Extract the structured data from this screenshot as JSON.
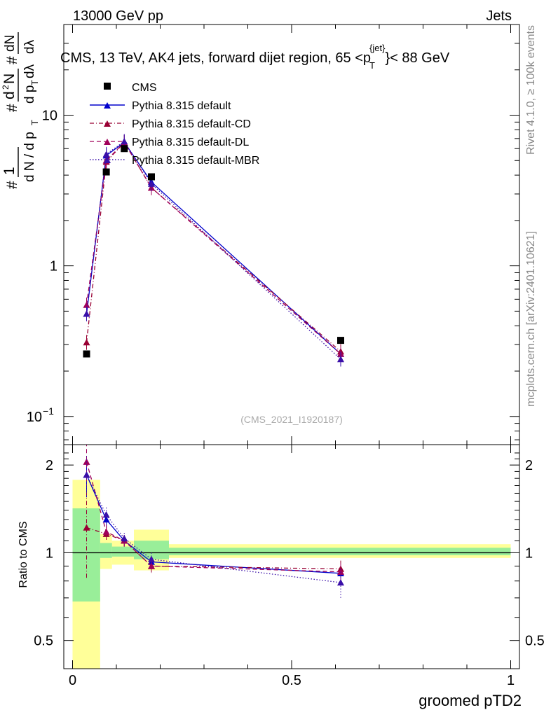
{
  "header": {
    "left": "13000 GeV pp",
    "right": "Jets"
  },
  "side_labels": {
    "rivet": "Rivet 4.1.0, ≥ 100k events",
    "mcplots": "mcplots.cern.ch [arXiv:2401.10621]"
  },
  "chart_data": {
    "type": "line",
    "title": "CMS, 13 TeV, AK4 jets, forward dijet region, 65 <p_T^{jet}< 88 GeV",
    "title_parts": {
      "main": "CMS, 13 TeV, AK4 jets, forward dijet region, 65 <p",
      "sub": "T",
      "sup": "{jet}",
      "tail": "}< 88 GeV"
    },
    "watermark": "(CMS_2021_I1920187)",
    "xlabel": "groomed pTD2",
    "ylabel_main": "1/dN/dp_T dN/dp_T dλ",
    "ylabel_ratio": "Ratio to CMS",
    "xlim": [
      -0.02,
      1.02
    ],
    "main_ylim": [
      0.065,
      40
    ],
    "ratio_ylim": [
      0.4,
      2.35
    ],
    "x_ticks": [
      "0",
      "0.5",
      "1"
    ],
    "main_y_ticks": [
      "10",
      "1",
      "10"
    ],
    "main_y_tick_sup": "−1",
    "ratio_y_ticks": [
      "2",
      "1",
      "0.5"
    ],
    "x": [
      0.032,
      0.077,
      0.118,
      0.18,
      0.612
    ],
    "band_bins": [
      {
        "x0": 0.0,
        "x1": 0.063,
        "inner": [
          0.68,
          1.42
        ],
        "outer": [
          0.36,
          1.78
        ]
      },
      {
        "x0": 0.063,
        "x1": 0.09,
        "inner": [
          0.96,
          1.08
        ],
        "outer": [
          0.88,
          1.16
        ]
      },
      {
        "x0": 0.09,
        "x1": 0.14,
        "inner": [
          0.97,
          1.05
        ],
        "outer": [
          0.91,
          1.1
        ]
      },
      {
        "x0": 0.14,
        "x1": 0.22,
        "inner": [
          0.95,
          1.1
        ],
        "outer": [
          0.87,
          1.2
        ]
      },
      {
        "x0": 0.22,
        "x1": 1.0,
        "inner": [
          0.98,
          1.04
        ],
        "outer": [
          0.96,
          1.07
        ]
      }
    ],
    "data": {
      "name": "CMS",
      "values": [
        0.26,
        4.2,
        6.0,
        3.9,
        0.32
      ]
    },
    "series": [
      {
        "name": "Pythia 8.315 default",
        "color": "#0000cc",
        "dash": "solid",
        "values": [
          0.48,
          5.4,
          6.6,
          3.6,
          0.26
        ],
        "ratio": [
          1.85,
          1.3,
          1.1,
          0.93,
          0.85
        ],
        "ratio_err": [
          0.3,
          0.08,
          0.05,
          0.04,
          0.05
        ]
      },
      {
        "name": "Pythia 8.315 default-CD",
        "color": "#990033",
        "dash": "dashdot",
        "values": [
          0.31,
          4.9,
          6.6,
          3.3,
          0.27
        ],
        "ratio": [
          1.22,
          1.16,
          1.1,
          0.9,
          0.88
        ],
        "ratio_err": [
          0.4,
          0.07,
          0.05,
          0.05,
          0.06
        ]
      },
      {
        "name": "Pythia 8.315 default-DL",
        "color": "#a0005a",
        "dash": "dashed",
        "values": [
          0.55,
          5.0,
          6.6,
          3.3,
          0.26
        ],
        "ratio": [
          2.05,
          1.18,
          1.1,
          0.9,
          0.86
        ],
        "ratio_err": [
          0.35,
          0.07,
          0.05,
          0.05,
          0.06
        ]
      },
      {
        "name": "Pythia 8.315 default-MBR",
        "color": "#3a0fa8",
        "dash": "dotted",
        "values": [
          0.48,
          5.5,
          6.7,
          3.5,
          0.24
        ],
        "ratio": [
          1.85,
          1.35,
          1.12,
          0.95,
          0.79
        ],
        "ratio_err": [
          0.3,
          0.08,
          0.05,
          0.05,
          0.09
        ]
      }
    ],
    "colors": {
      "inner_band": "#99ee99",
      "outer_band": "#ffff99"
    }
  }
}
